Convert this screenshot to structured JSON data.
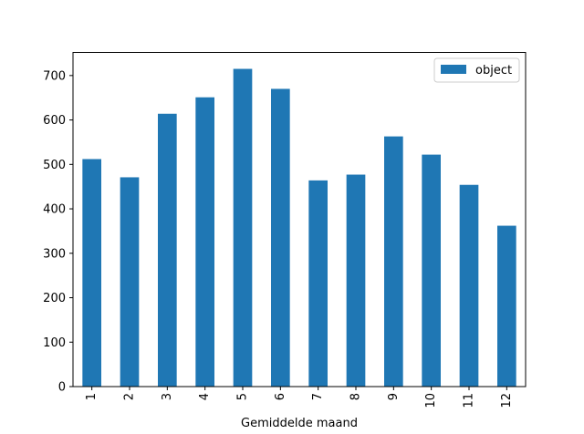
{
  "chart_data": {
    "type": "bar",
    "title": "",
    "xlabel": "Gemiddelde maand",
    "ylabel": "",
    "categories": [
      "1",
      "2",
      "3",
      "4",
      "5",
      "6",
      "7",
      "8",
      "9",
      "10",
      "11",
      "12"
    ],
    "series": [
      {
        "name": "object",
        "color": "#1f77b4",
        "values": [
          512,
          471,
          614,
          651,
          715,
          670,
          464,
          477,
          563,
          522,
          454,
          362
        ]
      }
    ],
    "ylim": [
      0,
      752
    ],
    "yticks": [
      0,
      100,
      200,
      300,
      400,
      500,
      600,
      700
    ],
    "legend_position": "top-right",
    "grid": false
  }
}
